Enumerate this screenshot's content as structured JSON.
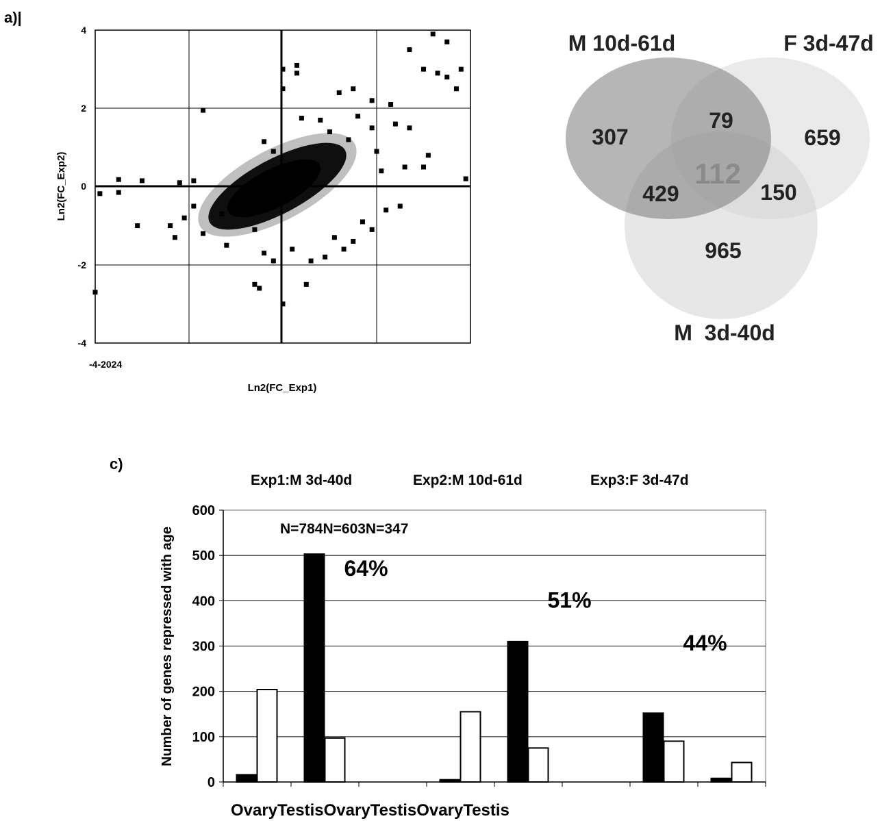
{
  "panel_labels": {
    "a": "a)|",
    "c": "c)"
  },
  "chart_data": [
    {
      "type": "scatter",
      "panel": "a",
      "xlabel": "Ln2(FC_Exp1)",
      "ylabel": "Ln2(FC_Exp2)",
      "x_tick_text": "-4-2024",
      "xlim": [
        -4,
        4
      ],
      "ylim": [
        -4,
        4
      ],
      "y_ticks": [
        "4",
        "2",
        "0",
        "-2",
        "-4"
      ],
      "grid": true,
      "points": [
        [
          -4.0,
          -2.7
        ],
        [
          -3.9,
          -0.18
        ],
        [
          -3.5,
          -0.15
        ],
        [
          -3.5,
          0.18
        ],
        [
          -3.1,
          -1.0
        ],
        [
          -3.0,
          0.15
        ],
        [
          -1.7,
          1.95
        ],
        [
          -2.4,
          -1.0
        ],
        [
          -2.3,
          -1.3
        ],
        [
          -2.1,
          -0.8
        ],
        [
          -1.9,
          -0.5
        ],
        [
          -1.7,
          -1.2
        ],
        [
          0.0,
          3.0
        ],
        [
          0.3,
          3.1
        ],
        [
          0.3,
          2.9
        ],
        [
          0.0,
          2.5
        ],
        [
          0.0,
          -3.0
        ],
        [
          -0.6,
          -2.5
        ],
        [
          -0.5,
          -2.6
        ],
        [
          0.5,
          -2.5
        ],
        [
          1.2,
          2.4
        ],
        [
          1.5,
          2.5
        ],
        [
          1.9,
          2.2
        ],
        [
          2.3,
          2.1
        ],
        [
          2.7,
          3.5
        ],
        [
          3.0,
          3.0
        ],
        [
          3.3,
          2.9
        ],
        [
          3.5,
          2.8
        ],
        [
          3.7,
          2.5
        ],
        [
          3.8,
          3.0
        ],
        [
          3.2,
          3.9
        ],
        [
          3.5,
          3.7
        ],
        [
          2.4,
          1.6
        ],
        [
          2.7,
          1.5
        ],
        [
          3.1,
          0.8
        ],
        [
          3.9,
          0.2
        ],
        [
          3.0,
          0.5
        ],
        [
          2.6,
          0.5
        ],
        [
          2.5,
          -0.5
        ],
        [
          2.2,
          -0.6
        ],
        [
          1.6,
          1.8
        ],
        [
          1.9,
          1.5
        ],
        [
          1.7,
          -0.9
        ],
        [
          1.1,
          -1.3
        ],
        [
          1.3,
          -1.6
        ],
        [
          -1.9,
          0.15
        ],
        [
          -0.4,
          1.15
        ],
        [
          -0.2,
          0.9
        ],
        [
          0.4,
          1.75
        ],
        [
          0.8,
          1.7
        ],
        [
          -1.3,
          -0.7
        ],
        [
          -1.2,
          -1.5
        ],
        [
          -0.6,
          -1.1
        ],
        [
          -0.4,
          -1.7
        ],
        [
          -0.2,
          -1.9
        ],
        [
          0.2,
          -1.6
        ],
        [
          0.6,
          -1.9
        ],
        [
          0.9,
          -1.8
        ],
        [
          1.5,
          -1.4
        ],
        [
          1.9,
          -1.1
        ],
        [
          -2.2,
          0.1
        ],
        [
          2.0,
          0.9
        ],
        [
          2.1,
          0.4
        ],
        [
          1.4,
          1.2
        ],
        [
          1.0,
          1.4
        ]
      ]
    },
    {
      "type": "venn",
      "panel": "b",
      "sets": [
        "M 10d-61d",
        "F 3d-47d",
        "M  3d-40d"
      ],
      "regions": {
        "M10_only": "307",
        "F3_only": "659",
        "M3_only": "965",
        "M10_F3": "79",
        "M10_M3": "429",
        "F3_M3": "150",
        "all": "112"
      }
    },
    {
      "type": "bar",
      "panel": "c",
      "title_labels": [
        "Exp1:M 3d-40d",
        "Exp2:M 10d-61d",
        "Exp3:F 3d-47d"
      ],
      "n_labels_text": "N=784N=603N=347",
      "ylabel": "Number of genes repressed with age",
      "x_labels_text": "OvaryTestisOvaryTestisOvaryTestis",
      "ylim": [
        0,
        600
      ],
      "y_ticks": [
        "600",
        "500",
        "400",
        "300",
        "200",
        "100",
        "0"
      ],
      "grid": true,
      "series": [
        {
          "fill": "#000000",
          "values": [
            16,
            503,
            0,
            5,
            310,
            0,
            152,
            8
          ]
        },
        {
          "fill": "#ffffff",
          "values": [
            204,
            97,
            0,
            155,
            75,
            0,
            90,
            43
          ]
        }
      ],
      "percent_annotations": [
        {
          "text": "64%",
          "category_index": 1,
          "y": 455
        },
        {
          "text": "51%",
          "category_index": 4,
          "y": 385
        },
        {
          "text": "44%",
          "category_index": 6,
          "y": 290
        }
      ]
    }
  ]
}
